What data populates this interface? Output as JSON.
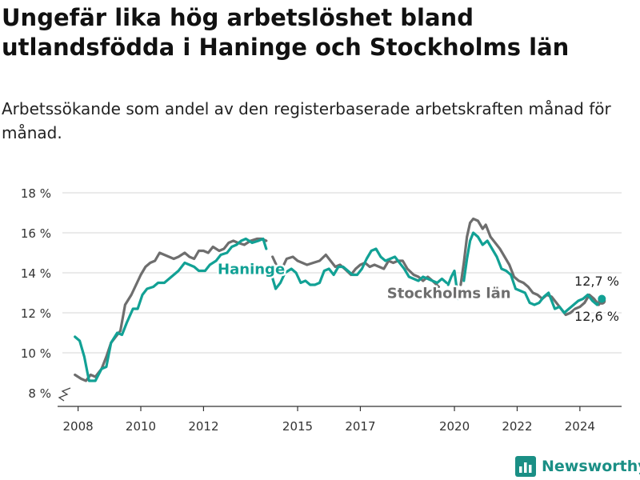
{
  "title": "Ungefär lika hög arbetslöshet bland utlandsfödda i Haninge och Stockholms län",
  "subtitle": "Arbetssökande som andel av den registerbaserade arbetskraften månad för månad.",
  "brand": "Newsworthy",
  "colors": {
    "haninge": "#12a195",
    "stockholm": "#6e6e6e",
    "grid": "#dddddd",
    "axis": "#333333",
    "brand": "#1a8f85"
  },
  "chart_data": {
    "type": "line",
    "title": "Ungefär lika hög arbetslöshet bland utlandsfödda i Haninge och Stockholms län",
    "xlabel": "",
    "ylabel": "",
    "ylim": [
      8,
      18
    ],
    "xlim": [
      2007.5,
      2025.33
    ],
    "x_ticks": [
      2008,
      2010,
      2012,
      2015,
      2017,
      2020,
      2022,
      2024
    ],
    "x_tick_labels": [
      "2008",
      "2010",
      "2012",
      "2015",
      "2017",
      "2020",
      "2022",
      "2024"
    ],
    "y_ticks": [
      8,
      10,
      12,
      14,
      16,
      18
    ],
    "y_tick_labels": [
      "8 %",
      "10 %",
      "12 %",
      "14 %",
      "16 %",
      "18 %"
    ],
    "grid": true,
    "series": [
      {
        "name": "Haninge",
        "label": "Haninge",
        "end_label": "12,7 %",
        "points": [
          [
            2007.9,
            10.8
          ],
          [
            2008.05,
            10.6
          ],
          [
            2008.2,
            9.8
          ],
          [
            2008.35,
            8.6
          ],
          [
            2008.55,
            8.6
          ],
          [
            2008.75,
            9.2
          ],
          [
            2008.9,
            9.3
          ],
          [
            2009.05,
            10.5
          ],
          [
            2009.25,
            11.0
          ],
          [
            2009.4,
            10.9
          ],
          [
            2009.55,
            11.5
          ],
          [
            2009.75,
            12.2
          ],
          [
            2009.9,
            12.2
          ],
          [
            2010.05,
            12.9
          ],
          [
            2010.2,
            13.2
          ],
          [
            2010.4,
            13.3
          ],
          [
            2010.55,
            13.5
          ],
          [
            2010.75,
            13.5
          ],
          [
            2010.9,
            13.7
          ],
          [
            2011.05,
            13.9
          ],
          [
            2011.2,
            14.1
          ],
          [
            2011.4,
            14.5
          ],
          [
            2011.55,
            14.4
          ],
          [
            2011.7,
            14.3
          ],
          [
            2011.85,
            14.1
          ],
          [
            2012.05,
            14.1
          ],
          [
            2012.2,
            14.4
          ],
          [
            2012.4,
            14.6
          ],
          [
            2012.55,
            14.9
          ],
          [
            2012.75,
            15.0
          ],
          [
            2012.9,
            15.3
          ],
          [
            2013.05,
            15.4
          ],
          [
            2013.2,
            15.6
          ],
          [
            2013.35,
            15.7
          ],
          [
            2013.55,
            15.5
          ],
          [
            2013.75,
            15.6
          ],
          [
            2013.9,
            15.7
          ],
          [
            2014.0,
            15.2
          ],
          null,
          [
            2014.15,
            14.0
          ],
          [
            2014.3,
            13.2
          ],
          [
            2014.45,
            13.5
          ],
          [
            2014.6,
            14.0
          ],
          [
            2014.8,
            14.2
          ],
          [
            2014.95,
            14.0
          ],
          [
            2015.1,
            13.5
          ],
          [
            2015.25,
            13.6
          ],
          [
            2015.4,
            13.4
          ],
          [
            2015.55,
            13.4
          ],
          [
            2015.7,
            13.5
          ],
          [
            2015.85,
            14.1
          ],
          [
            2016.0,
            14.2
          ],
          [
            2016.15,
            13.9
          ],
          [
            2016.3,
            14.3
          ],
          [
            2016.45,
            14.3
          ],
          [
            2016.6,
            14.1
          ],
          [
            2016.75,
            13.9
          ],
          [
            2016.9,
            13.9
          ],
          [
            2017.05,
            14.2
          ],
          [
            2017.2,
            14.7
          ],
          [
            2017.35,
            15.1
          ],
          [
            2017.5,
            15.2
          ],
          [
            2017.65,
            14.8
          ],
          [
            2017.8,
            14.6
          ],
          [
            2017.95,
            14.7
          ],
          [
            2018.1,
            14.8
          ],
          [
            2018.25,
            14.5
          ],
          [
            2018.4,
            14.2
          ],
          [
            2018.55,
            13.8
          ],
          [
            2018.7,
            13.7
          ],
          [
            2018.85,
            13.6
          ],
          [
            2019.0,
            13.8
          ],
          [
            2019.15,
            13.7
          ],
          [
            2019.3,
            13.6
          ],
          [
            2019.45,
            13.5
          ],
          [
            2019.6,
            13.7
          ],
          [
            2019.75,
            13.5
          ],
          null,
          [
            2019.8,
            13.4
          ],
          [
            2019.9,
            13.8
          ],
          [
            2020.0,
            14.1
          ],
          [
            2020.05,
            13.5
          ],
          [
            2020.12,
            12.7
          ],
          null,
          [
            2020.3,
            13.6
          ],
          [
            2020.4,
            14.7
          ],
          [
            2020.5,
            15.6
          ],
          [
            2020.6,
            16.0
          ],
          [
            2020.75,
            15.8
          ],
          [
            2020.9,
            15.4
          ],
          [
            2021.05,
            15.6
          ],
          [
            2021.2,
            15.2
          ],
          [
            2021.35,
            14.8
          ],
          [
            2021.5,
            14.2
          ],
          [
            2021.65,
            14.1
          ],
          [
            2021.8,
            13.9
          ],
          [
            2021.95,
            13.2
          ],
          [
            2022.1,
            13.1
          ],
          [
            2022.25,
            13.0
          ],
          [
            2022.4,
            12.5
          ],
          [
            2022.55,
            12.4
          ],
          [
            2022.7,
            12.5
          ],
          [
            2022.85,
            12.8
          ],
          [
            2023.0,
            13.0
          ],
          [
            2023.1,
            12.6
          ],
          [
            2023.2,
            12.2
          ],
          [
            2023.35,
            12.3
          ],
          [
            2023.5,
            12.0
          ],
          [
            2023.65,
            12.2
          ],
          [
            2023.8,
            12.4
          ],
          [
            2023.95,
            12.6
          ],
          [
            2024.1,
            12.7
          ],
          [
            2024.25,
            12.9
          ],
          [
            2024.4,
            12.6
          ],
          [
            2024.55,
            12.4
          ],
          [
            2024.7,
            12.7
          ]
        ]
      },
      {
        "name": "Stockholms län",
        "label": "Stockholms län",
        "end_label": "12,6 %",
        "points": [
          [
            2007.9,
            8.9
          ],
          [
            2008.1,
            8.7
          ],
          [
            2008.25,
            8.6
          ],
          [
            2008.4,
            8.9
          ],
          [
            2008.55,
            8.8
          ],
          [
            2008.75,
            9.2
          ],
          [
            2008.9,
            9.8
          ],
          [
            2009.05,
            10.5
          ],
          [
            2009.2,
            10.8
          ],
          [
            2009.35,
            11.1
          ],
          [
            2009.5,
            12.4
          ],
          [
            2009.7,
            12.9
          ],
          [
            2009.85,
            13.4
          ],
          [
            2010.0,
            13.9
          ],
          [
            2010.15,
            14.3
          ],
          [
            2010.3,
            14.5
          ],
          [
            2010.45,
            14.6
          ],
          [
            2010.6,
            15.0
          ],
          [
            2010.75,
            14.9
          ],
          [
            2010.9,
            14.8
          ],
          [
            2011.05,
            14.7
          ],
          [
            2011.2,
            14.8
          ],
          [
            2011.4,
            15.0
          ],
          [
            2011.55,
            14.8
          ],
          [
            2011.7,
            14.7
          ],
          [
            2011.85,
            15.1
          ],
          [
            2012.0,
            15.1
          ],
          [
            2012.15,
            15.0
          ],
          [
            2012.3,
            15.3
          ],
          [
            2012.5,
            15.1
          ],
          [
            2012.65,
            15.2
          ],
          [
            2012.8,
            15.5
          ],
          [
            2012.95,
            15.6
          ],
          [
            2013.1,
            15.5
          ],
          [
            2013.3,
            15.4
          ],
          [
            2013.5,
            15.6
          ],
          [
            2013.7,
            15.7
          ],
          [
            2013.85,
            15.7
          ],
          [
            2014.0,
            15.6
          ],
          null,
          [
            2014.2,
            14.8
          ],
          [
            2014.35,
            14.3
          ],
          [
            2014.5,
            14.2
          ],
          [
            2014.65,
            14.7
          ],
          [
            2014.85,
            14.8
          ],
          [
            2015.0,
            14.6
          ],
          [
            2015.15,
            14.5
          ],
          [
            2015.3,
            14.4
          ],
          [
            2015.5,
            14.5
          ],
          [
            2015.7,
            14.6
          ],
          [
            2015.9,
            14.9
          ],
          [
            2016.05,
            14.6
          ],
          [
            2016.2,
            14.3
          ],
          [
            2016.35,
            14.4
          ],
          [
            2016.5,
            14.2
          ],
          [
            2016.7,
            13.9
          ],
          [
            2016.85,
            14.2
          ],
          [
            2017.0,
            14.4
          ],
          [
            2017.15,
            14.5
          ],
          [
            2017.3,
            14.3
          ],
          [
            2017.45,
            14.4
          ],
          [
            2017.6,
            14.3
          ],
          [
            2017.75,
            14.2
          ],
          [
            2017.9,
            14.6
          ],
          [
            2018.05,
            14.5
          ],
          [
            2018.2,
            14.6
          ],
          [
            2018.35,
            14.6
          ],
          [
            2018.5,
            14.2
          ],
          [
            2018.7,
            13.9
          ],
          [
            2018.85,
            13.8
          ],
          [
            2019.0,
            13.6
          ],
          [
            2019.15,
            13.8
          ],
          [
            2019.3,
            13.6
          ],
          [
            2019.5,
            13.3
          ],
          null,
          [
            2020.2,
            13.4
          ],
          [
            2020.3,
            14.5
          ],
          [
            2020.4,
            15.8
          ],
          [
            2020.5,
            16.5
          ],
          [
            2020.6,
            16.7
          ],
          [
            2020.75,
            16.6
          ],
          [
            2020.9,
            16.2
          ],
          [
            2021.0,
            16.4
          ],
          [
            2021.15,
            15.8
          ],
          [
            2021.3,
            15.5
          ],
          [
            2021.45,
            15.2
          ],
          [
            2021.6,
            14.8
          ],
          [
            2021.75,
            14.4
          ],
          [
            2021.9,
            13.8
          ],
          [
            2022.05,
            13.6
          ],
          [
            2022.2,
            13.5
          ],
          [
            2022.35,
            13.3
          ],
          [
            2022.5,
            13.0
          ],
          [
            2022.65,
            12.9
          ],
          [
            2022.8,
            12.7
          ],
          [
            2022.95,
            12.9
          ],
          [
            2023.1,
            12.8
          ],
          [
            2023.25,
            12.5
          ],
          [
            2023.4,
            12.2
          ],
          [
            2023.55,
            11.9
          ],
          [
            2023.7,
            12.0
          ],
          [
            2023.85,
            12.2
          ],
          [
            2024.0,
            12.3
          ],
          [
            2024.15,
            12.5
          ],
          [
            2024.3,
            12.9
          ],
          [
            2024.45,
            12.7
          ],
          [
            2024.6,
            12.4
          ],
          [
            2024.7,
            12.6
          ]
        ]
      }
    ]
  }
}
